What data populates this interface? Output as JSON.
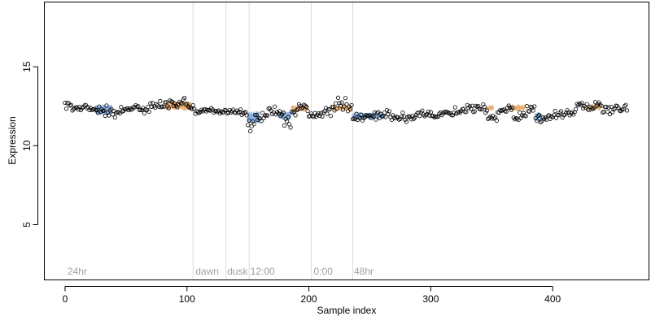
{
  "chart_data": {
    "type": "scatter",
    "xlabel": "Sample index",
    "ylabel": "Expression",
    "xlim": [
      -17,
      479
    ],
    "ylim": [
      1.5,
      19.1
    ],
    "x_ticks": [
      0,
      100,
      200,
      300,
      400
    ],
    "y_ticks": [
      5,
      10,
      15
    ],
    "grid": false,
    "colors": {
      "high": "#E8A869",
      "low": "#7DA9DD",
      "point_stroke": "#000000",
      "vline": "#dcdcdc",
      "annotation": "#a0a0a0"
    },
    "annotations": [
      {
        "label": "24hr",
        "x": 2
      },
      {
        "label": "dawn",
        "x": 107
      },
      {
        "label": "dusk",
        "x": 133
      },
      {
        "label": "12:00",
        "x": 152
      },
      {
        "label": "0:00",
        "x": 204
      },
      {
        "label": "48hr",
        "x": 237
      }
    ],
    "vlines": [
      105,
      132,
      151,
      202,
      236
    ],
    "segments": [
      [
        0,
        6,
        12.6,
        12.6,
        0.2
      ],
      [
        6,
        26,
        12.4,
        12.4,
        0.22
      ],
      [
        26,
        46,
        12.2,
        12.1,
        0.22
      ],
      [
        46,
        70,
        12.3,
        12.4,
        0.22
      ],
      [
        70,
        86,
        12.5,
        12.6,
        0.22
      ],
      [
        86,
        101,
        12.8,
        12.7,
        0.28
      ],
      [
        101,
        106,
        12.4,
        12.3,
        0.22
      ],
      [
        106,
        122,
        12.2,
        12.2,
        0.12
      ],
      [
        122,
        137,
        12.15,
        12.15,
        0.12
      ],
      [
        137,
        150,
        12.2,
        12.1,
        0.15
      ],
      [
        150,
        156,
        11.3,
        11.5,
        0.35
      ],
      [
        156,
        167,
        11.7,
        11.9,
        0.2
      ],
      [
        167,
        178,
        12.2,
        12.1,
        0.2
      ],
      [
        178,
        186,
        11.8,
        11.4,
        0.4
      ],
      [
        186,
        192,
        12.1,
        12.3,
        0.2
      ],
      [
        192,
        200,
        12.5,
        12.4,
        0.2
      ],
      [
        200,
        212,
        11.9,
        12.0,
        0.12
      ],
      [
        212,
        224,
        12.2,
        12.3,
        0.2
      ],
      [
        224,
        236,
        12.7,
        12.3,
        0.3
      ],
      [
        236,
        262,
        11.7,
        11.9,
        0.2
      ],
      [
        262,
        284,
        11.9,
        11.8,
        0.22
      ],
      [
        284,
        300,
        11.9,
        12.1,
        0.2
      ],
      [
        300,
        320,
        12.0,
        12.1,
        0.2
      ],
      [
        320,
        332,
        12.2,
        12.3,
        0.2
      ],
      [
        332,
        345,
        12.3,
        12.4,
        0.2
      ],
      [
        345,
        356,
        11.9,
        11.8,
        0.25
      ],
      [
        356,
        368,
        12.2,
        12.4,
        0.22
      ],
      [
        368,
        377,
        11.8,
        11.8,
        0.3
      ],
      [
        377,
        386,
        12.2,
        12.4,
        0.25
      ],
      [
        386,
        392,
        11.6,
        11.7,
        0.3
      ],
      [
        392,
        410,
        11.8,
        12.0,
        0.25
      ],
      [
        410,
        420,
        12.2,
        12.2,
        0.2
      ],
      [
        420,
        440,
        12.5,
        12.5,
        0.22
      ],
      [
        440,
        462,
        12.3,
        12.4,
        0.22
      ]
    ],
    "bar_ranges": [
      {
        "from": 25,
        "to": 39,
        "color": "low",
        "top": 12.55,
        "bottom": 12.0
      },
      {
        "from": 83,
        "to": 104,
        "color": "high",
        "top": 12.75,
        "bottom": 12.3
      },
      {
        "from": 150,
        "to": 160,
        "color": "low",
        "top": 12.1,
        "bottom": 11.5
      },
      {
        "from": 175,
        "to": 186,
        "color": "low",
        "top": 12.15,
        "bottom": 11.7
      },
      {
        "from": 186,
        "to": 200,
        "color": "high",
        "top": 12.5,
        "bottom": 12.2
      },
      {
        "from": 220,
        "to": 236,
        "color": "high",
        "top": 12.55,
        "bottom": 12.2
      },
      {
        "from": 236,
        "to": 262,
        "color": "low",
        "top": 12.05,
        "bottom": 11.7
      },
      {
        "from": 345,
        "to": 352,
        "color": "high",
        "top": 12.5,
        "bottom": 12.25
      },
      {
        "from": 365,
        "to": 378,
        "color": "high",
        "top": 12.55,
        "bottom": 12.25
      },
      {
        "from": 386,
        "to": 392,
        "color": "low",
        "top": 12.05,
        "bottom": 11.6
      },
      {
        "from": 428,
        "to": 440,
        "color": "high",
        "top": 12.6,
        "bottom": 12.3
      }
    ],
    "point_count": 462
  }
}
